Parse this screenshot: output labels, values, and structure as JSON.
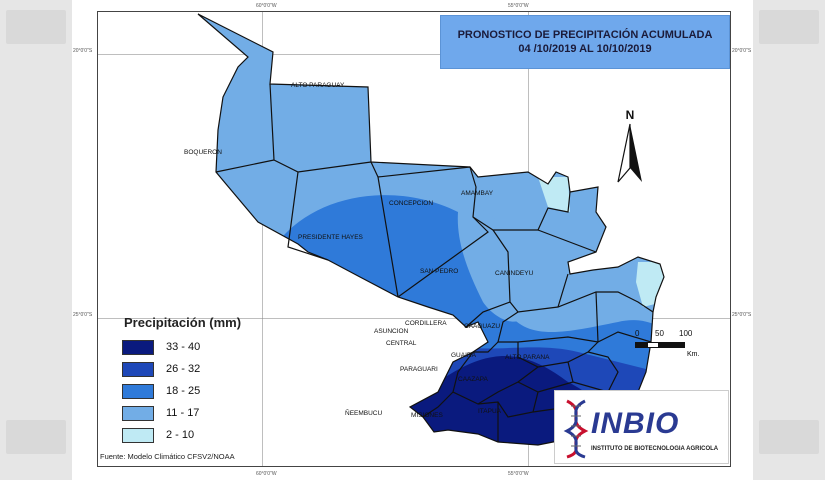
{
  "title": {
    "line1": "PRONOSTICO DE PRECIPITACIÓN ACUMULADA",
    "line2": "04 /10/2019 AL 10/10/2019"
  },
  "legend": {
    "title": "Precipitación (mm)",
    "items": [
      {
        "label": "33 - 40",
        "color": "#0a1a7e"
      },
      {
        "label": "26 - 32",
        "color": "#1e48b8"
      },
      {
        "label": "18 - 25",
        "color": "#2f7ad9"
      },
      {
        "label": "11 - 17",
        "color": "#72ade6"
      },
      {
        "label": "2 - 10",
        "color": "#bfeaf4"
      }
    ]
  },
  "source": "Fuente: Modelo Climático CFSV2/NOAA",
  "north_label": "N",
  "scale": {
    "ticks": [
      "0",
      "50",
      "100"
    ],
    "unit": "Km."
  },
  "logo": {
    "name": "INBIO",
    "subtitle": "INSTITUTO DE BIOTECNOLOGIA AGRICOLA"
  },
  "departments": {
    "alto_paraguay": "ALTO PARAGUAY",
    "boqueron": "BOQUERON",
    "presidente_hayes": "PRESIDENTE HAYES",
    "concepcion": "CONCEPCION",
    "amambay": "AMAMBAY",
    "san_pedro": "SAN PEDRO",
    "canindeyu": "CANINDEYU",
    "cordillera": "CORDILLERA",
    "caaguazu": "CAAGUAZU",
    "asuncion": "ASUNCION",
    "central": "CENTRAL",
    "guaira": "GUAIRA",
    "paraguari": "PARAGUARI",
    "alto_parana": "ALTO PARANA",
    "caazapa": "CAAZAPA",
    "neembucu": "ÑEEMBUCU",
    "misiones": "MISIONES",
    "itapua": "ITAPUA"
  },
  "coords": {
    "top_left": "60°0'0\"W",
    "top_right": "55°0'0\"W",
    "bottom_left": "60°0'0\"W",
    "bottom_right": "55°0'0\"W",
    "left_top": "20°0'0\"S",
    "left_bottom": "25°0'0\"S",
    "right_top": "20°0'0\"S",
    "right_bottom": "25°0'0\"S"
  }
}
